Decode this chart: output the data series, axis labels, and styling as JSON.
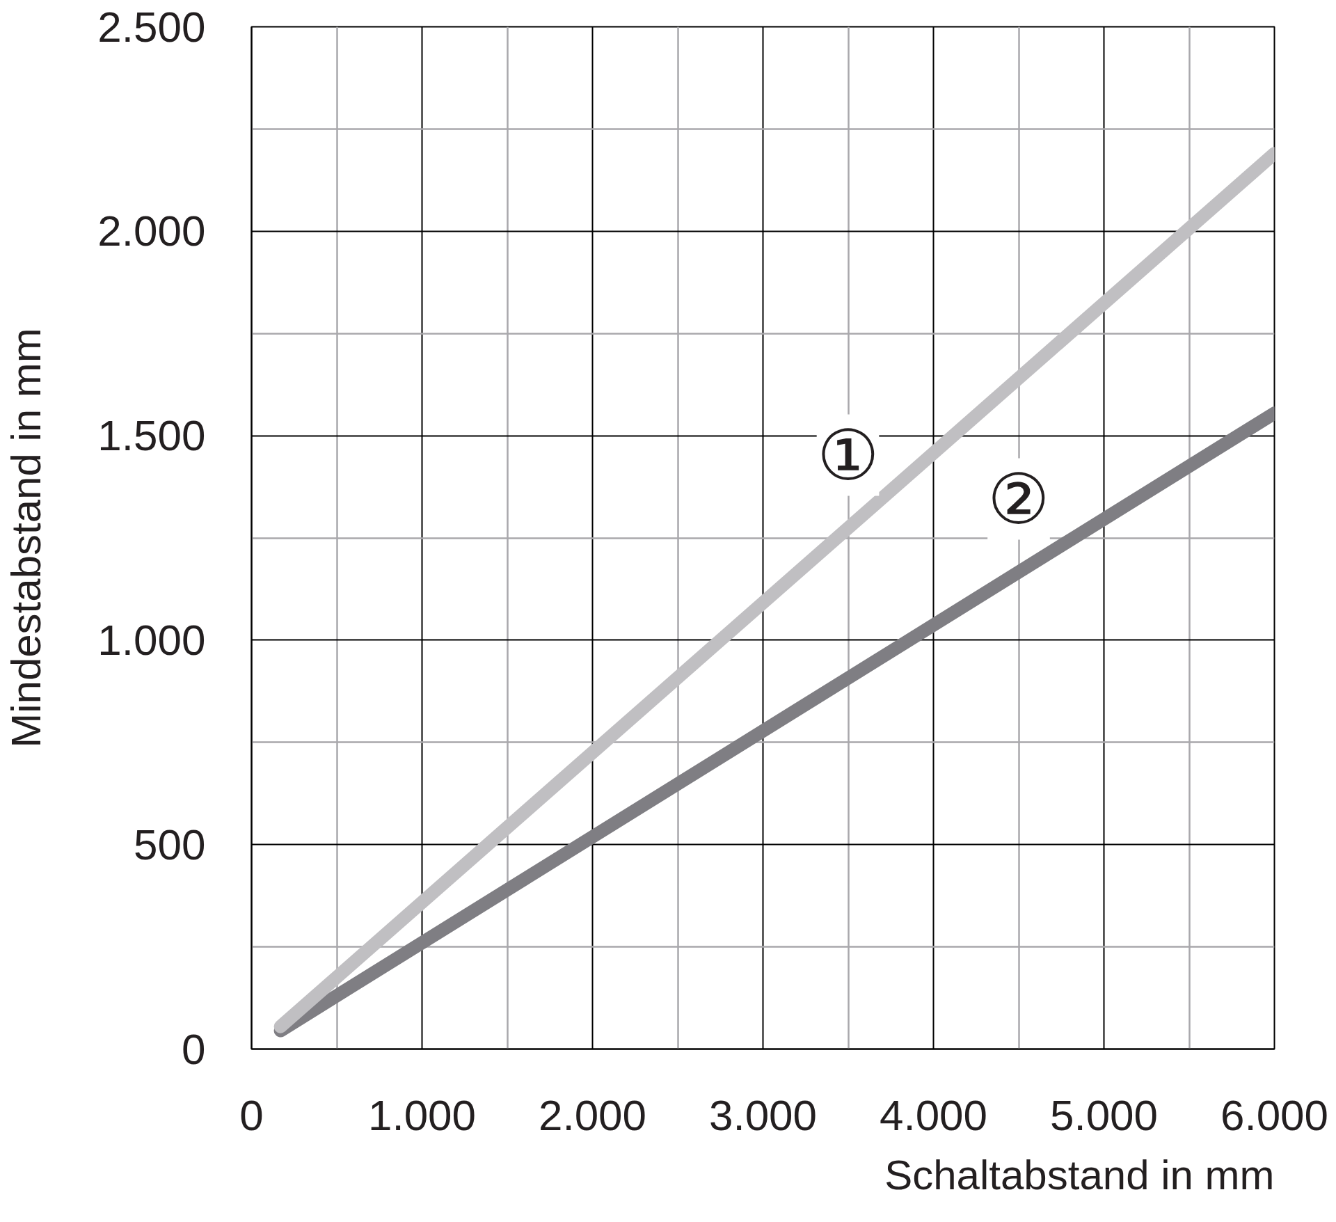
{
  "chart_data": {
    "type": "line",
    "xlabel": "Schaltabstand in mm",
    "ylabel": "Mindestabstand in mm",
    "xlim": [
      0,
      6000
    ],
    "ylim": [
      0,
      2500
    ],
    "xticks": [
      0,
      {
        "value": 1000,
        "label": "1.000"
      },
      {
        "value": 2000,
        "label": "2.000"
      },
      {
        "value": 3000,
        "label": "3.000"
      },
      {
        "value": 4000,
        "label": "4.000"
      },
      {
        "value": 5000,
        "label": "5.000"
      },
      {
        "value": 6000,
        "label": "6.000"
      }
    ],
    "yticks": [
      0,
      500,
      {
        "value": 1000,
        "label": "1.000"
      },
      {
        "value": 1500,
        "label": "1.500"
      },
      {
        "value": 2000,
        "label": "2.000"
      },
      {
        "value": 2500,
        "label": "2.500"
      }
    ],
    "grid": true,
    "x": [
      170,
      6000
    ],
    "series": [
      {
        "name": "①",
        "color": "#c0bfc2",
        "values": [
          55,
          2190
        ]
      },
      {
        "name": "②",
        "color": "#7f7e83",
        "values": [
          45,
          1555
        ]
      }
    ]
  }
}
